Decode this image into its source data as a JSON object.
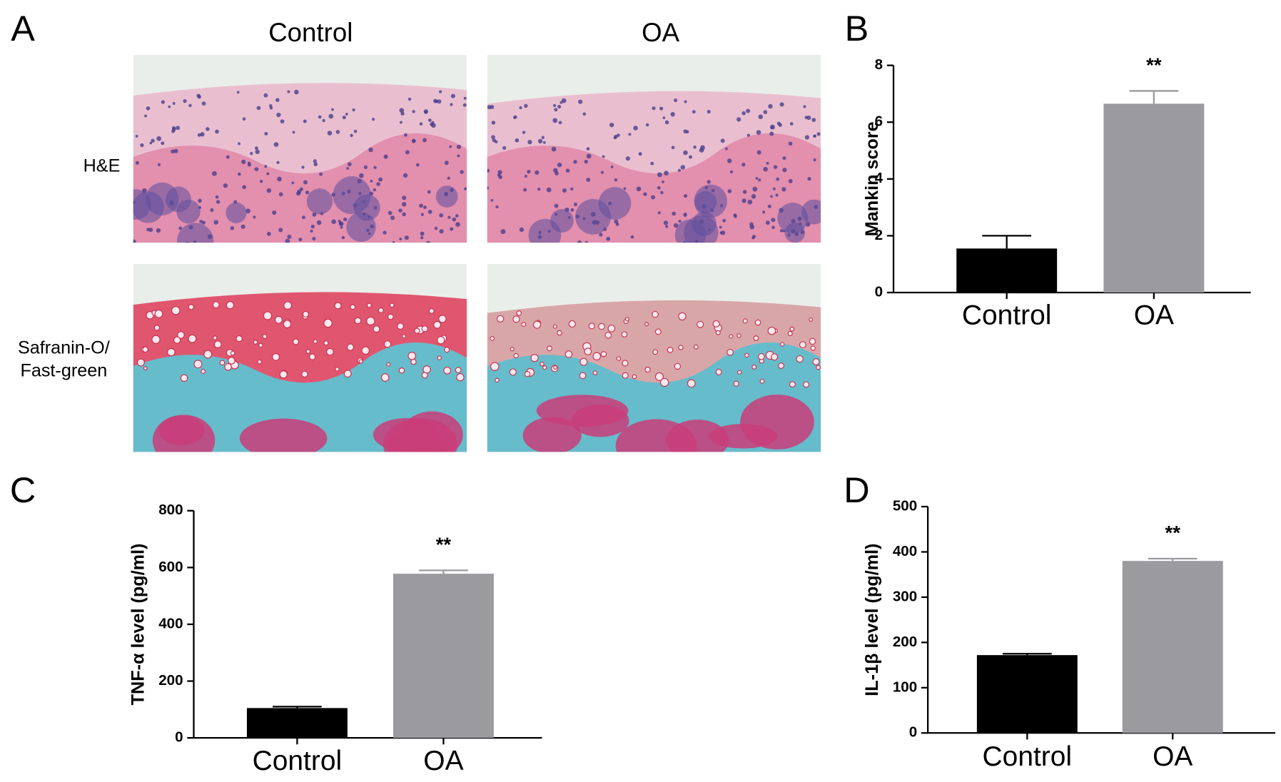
{
  "panel_a": {
    "panel": "A",
    "columns": [
      "Control",
      "OA"
    ],
    "rows": [
      [
        "H&E"
      ],
      [
        "Safranin-O/",
        "Fast-green"
      ]
    ]
  },
  "chart_data": [
    {
      "type": "bar",
      "panel": "B",
      "ylabel": "Mankin score",
      "categories": [
        "Control",
        "OA"
      ],
      "values": [
        1.55,
        6.65
      ],
      "errors": [
        0.45,
        0.45
      ],
      "colors": [
        "#000000",
        "#9a9a9f"
      ],
      "annotations": [
        null,
        "**"
      ],
      "ylim": [
        0,
        8
      ],
      "yticks": [
        0,
        2,
        4,
        6,
        8
      ]
    },
    {
      "type": "bar",
      "panel": "C",
      "ylabel": "TNF-α level (pg/ml)",
      "categories": [
        "Control",
        "OA"
      ],
      "values": [
        105,
        578
      ],
      "errors": [
        5,
        12
      ],
      "colors": [
        "#000000",
        "#9a9a9f"
      ],
      "annotations": [
        null,
        "**"
      ],
      "ylim": [
        0,
        800
      ],
      "yticks": [
        0,
        200,
        400,
        600,
        800
      ]
    },
    {
      "type": "bar",
      "panel": "D",
      "ylabel": "IL-1β level (pg/ml)",
      "categories": [
        "Control",
        "OA"
      ],
      "values": [
        172,
        380
      ],
      "errors": [
        3,
        5
      ],
      "colors": [
        "#000000",
        "#9a9a9f"
      ],
      "annotations": [
        null,
        "**"
      ],
      "ylim": [
        0,
        500
      ],
      "yticks": [
        0,
        100,
        200,
        300,
        400,
        500
      ]
    }
  ]
}
